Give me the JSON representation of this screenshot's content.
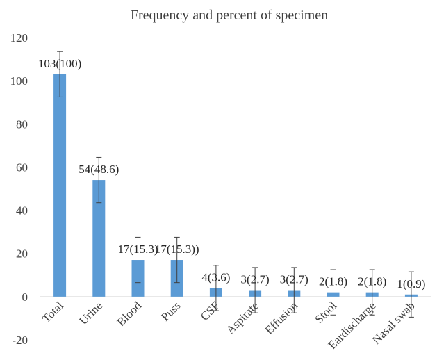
{
  "chart_data": {
    "type": "bar",
    "title": "Frequency and percent of specimen",
    "xlabel": "",
    "ylabel": "",
    "ylim": [
      -20,
      120
    ],
    "yticks": [
      -20,
      0,
      20,
      40,
      60,
      80,
      100,
      120
    ],
    "grid": false,
    "legend": "none",
    "categories": [
      "Total",
      "Urine",
      "Blood",
      "Puss",
      "CSF",
      "Aspirate",
      "Effusion",
      "Stool",
      "Eardischarge",
      "Nasal swab"
    ],
    "values": [
      103,
      54,
      17,
      17,
      4,
      3,
      3,
      2,
      2,
      1
    ],
    "data_labels": [
      "103(100)",
      "54(48.6)",
      "17(15.3)",
      "17(15.3))",
      "4(3.6)",
      "3(2.7)",
      "3(2.7)",
      "2(1.8)",
      "2(1.8)",
      "1(0.9)"
    ],
    "error_bar": 10.5,
    "bar_color": "#5b9bd5",
    "error_bar_color": "#404040"
  }
}
